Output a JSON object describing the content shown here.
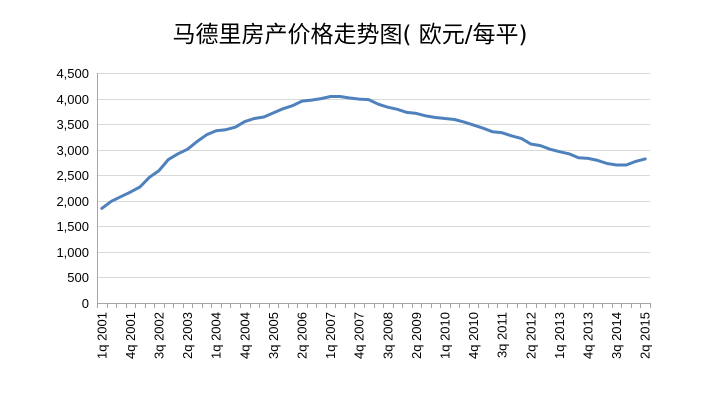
{
  "chart_data": {
    "type": "line",
    "title": "马德里房产价格走势图( 欧元/每平)",
    "xlabel": "",
    "ylabel": "",
    "ylim": [
      0,
      4500
    ],
    "y_ticks": [
      "0",
      "500",
      "1,000",
      "1,500",
      "2,000",
      "2,500",
      "3,000",
      "3,500",
      "4,000",
      "4,500"
    ],
    "grid": true,
    "legend": "none",
    "x_tick_labels": [
      "1q 2001",
      "4q 2001",
      "3q 2002",
      "2q 2003",
      "1q 2004",
      "4q 2004",
      "3q 2005",
      "2q 2006",
      "1q 2007",
      "4q 2007",
      "3q 2008",
      "2q 2009",
      "1q 2010",
      "4q 2010",
      "3q 2011",
      "2q 2012",
      "1q 2013",
      "4q 2013",
      "3q 2014",
      "2q 2015"
    ],
    "categories": [
      "1q 2001",
      "2q 2001",
      "3q 2001",
      "4q 2001",
      "1q 2002",
      "2q 2002",
      "3q 2002",
      "4q 2002",
      "1q 2003",
      "2q 2003",
      "3q 2003",
      "4q 2003",
      "1q 2004",
      "2q 2004",
      "3q 2004",
      "4q 2004",
      "1q 2005",
      "2q 2005",
      "3q 2005",
      "4q 2005",
      "1q 2006",
      "2q 2006",
      "3q 2006",
      "4q 2006",
      "1q 2007",
      "2q 2007",
      "3q 2007",
      "4q 2007",
      "1q 2008",
      "2q 2008",
      "3q 2008",
      "4q 2008",
      "1q 2009",
      "2q 2009",
      "3q 2009",
      "4q 2009",
      "1q 2010",
      "2q 2010",
      "3q 2010",
      "4q 2010",
      "1q 2011",
      "2q 2011",
      "3q 2011",
      "4q 2011",
      "1q 2012",
      "2q 2012",
      "3q 2012",
      "4q 2012",
      "1q 2013",
      "2q 2013",
      "3q 2013",
      "4q 2013",
      "1q 2014",
      "2q 2014",
      "3q 2014",
      "4q 2014",
      "1q 2015",
      "2q 2015"
    ],
    "series": [
      {
        "color": "#4f81bd",
        "values": [
          1850,
          1990,
          2080,
          2170,
          2270,
          2460,
          2590,
          2810,
          2920,
          3010,
          3160,
          3290,
          3370,
          3390,
          3440,
          3550,
          3610,
          3640,
          3720,
          3800,
          3860,
          3950,
          3970,
          4000,
          4040,
          4040,
          4010,
          3990,
          3980,
          3890,
          3830,
          3790,
          3730,
          3710,
          3660,
          3630,
          3610,
          3590,
          3540,
          3480,
          3420,
          3350,
          3330,
          3270,
          3220,
          3110,
          3080,
          3010,
          2960,
          2920,
          2840,
          2830,
          2790,
          2730,
          2700,
          2700,
          2770,
          2820
        ]
      }
    ]
  }
}
